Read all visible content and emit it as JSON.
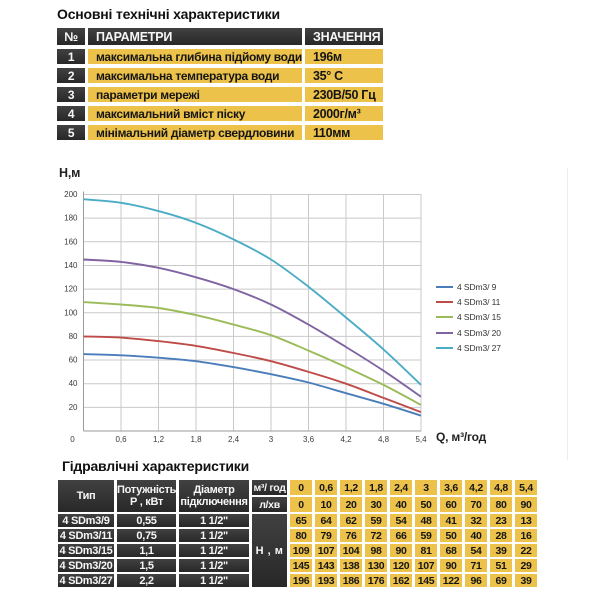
{
  "spec_section": {
    "title": "Основні технічні характеристики",
    "table": {
      "headers": [
        "№",
        "ПАРАМЕТРИ",
        "ЗНАЧЕННЯ"
      ],
      "rows": [
        {
          "num": "1",
          "param": "максимальна глибина підйому води",
          "value": "196м"
        },
        {
          "num": "2",
          "param": "максимальна температура води",
          "value": "35° С"
        },
        {
          "num": "3",
          "param": "параметри мережі",
          "value": "230В/50 Гц"
        },
        {
          "num": "4",
          "param": "максимальний вміст піску",
          "value": "2000г/м³"
        },
        {
          "num": "5",
          "param": "мінімальний діаметр свердловини",
          "value": "110мм"
        }
      ]
    }
  },
  "chart_data": {
    "type": "line",
    "title": "",
    "ylabel": "Н,м",
    "xlabel": "Q,  м³/год",
    "x": [
      0,
      0.6,
      1.2,
      1.8,
      2.4,
      3,
      3.6,
      4.2,
      4.8,
      5.4
    ],
    "x_tick_labels": [
      "0",
      "0,6",
      "1,2",
      "1,8",
      "2,4",
      "3",
      "3,6",
      "4,2",
      "4,8",
      "5,4"
    ],
    "xlim": [
      0,
      5.4
    ],
    "ylim": [
      0,
      200
    ],
    "y_ticks": [
      20,
      40,
      60,
      80,
      100,
      120,
      140,
      160,
      180,
      200
    ],
    "grid": true,
    "legend_position": "right",
    "series": [
      {
        "name": "4 SDm3/ 9",
        "color": "#4a7ebb",
        "values": [
          65,
          64,
          62,
          59,
          54,
          48,
          41,
          32,
          23,
          13
        ]
      },
      {
        "name": "4 SDm3/ 11",
        "color": "#be4b48",
        "values": [
          80,
          79,
          76,
          72,
          66,
          59,
          50,
          40,
          28,
          16
        ]
      },
      {
        "name": "4 SDm3/ 15",
        "color": "#9bbb59",
        "values": [
          109,
          107,
          104,
          98,
          90,
          81,
          68,
          54,
          39,
          22
        ]
      },
      {
        "name": "4 SDm3/ 20",
        "color": "#8064a2",
        "values": [
          145,
          143,
          138,
          130,
          120,
          107,
          90,
          71,
          51,
          29
        ]
      },
      {
        "name": "4 SDm3/ 27",
        "color": "#4bacc6",
        "values": [
          196,
          193,
          186,
          176,
          162,
          145,
          122,
          96,
          69,
          39
        ]
      }
    ]
  },
  "hydraulic_section": {
    "title": "Гідравлічні характеристики",
    "table": {
      "type_header": "Тип",
      "power_header": [
        "Потужність",
        "Р , кВт"
      ],
      "diameter_header": [
        "Діаметр",
        "підключення"
      ],
      "flow_unit_hour": "м³/ год",
      "flow_unit_min": "л/хв",
      "head_label": "Н , м",
      "flow_m3h": [
        "0",
        "0,6",
        "1,2",
        "1,8",
        "2,4",
        "3",
        "3,6",
        "4,2",
        "4,8",
        "5,4"
      ],
      "flow_lmin": [
        "0",
        "10",
        "20",
        "30",
        "40",
        "50",
        "60",
        "70",
        "80",
        "90"
      ],
      "rows": [
        {
          "type": "4 SDm3/9",
          "power": "0,55",
          "diameter": "1 1/2\"",
          "head": [
            "65",
            "64",
            "62",
            "59",
            "54",
            "48",
            "41",
            "32",
            "23",
            "13"
          ]
        },
        {
          "type": "4 SDm3/11",
          "power": "0,75",
          "diameter": "1 1/2\"",
          "head": [
            "80",
            "79",
            "76",
            "72",
            "66",
            "59",
            "50",
            "40",
            "28",
            "16"
          ]
        },
        {
          "type": "4 SDm3/15",
          "power": "1,1",
          "diameter": "1 1/2\"",
          "head": [
            "109",
            "107",
            "104",
            "98",
            "90",
            "81",
            "68",
            "54",
            "39",
            "22"
          ]
        },
        {
          "type": "4 SDm3/20",
          "power": "1,5",
          "diameter": "1 1/2\"",
          "head": [
            "145",
            "143",
            "138",
            "130",
            "120",
            "107",
            "90",
            "71",
            "51",
            "29"
          ]
        },
        {
          "type": "4 SDm3/27",
          "power": "2,2",
          "diameter": "1 1/2\"",
          "head": [
            "196",
            "193",
            "186",
            "176",
            "162",
            "145",
            "122",
            "96",
            "69",
            "39"
          ]
        }
      ]
    }
  },
  "colors": {
    "header_dark": "#333333",
    "cell_yellow": "#edc24a",
    "grid_line": "#c9c9c9",
    "axis_line": "#9a9a9a"
  }
}
